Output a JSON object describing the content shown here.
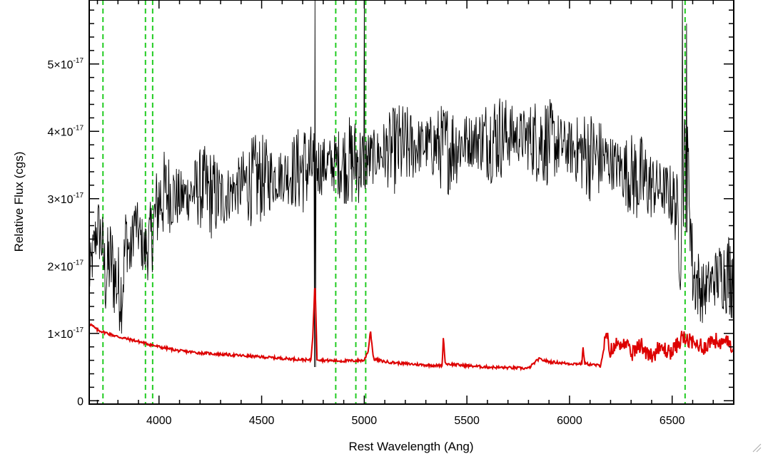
{
  "chart_data": {
    "type": "line",
    "title": "",
    "xlabel": "Rest Wavelength (Ang)",
    "ylabel": "Relative Flux (cgs)",
    "xlim": [
      3660,
      6800
    ],
    "ylim": [
      -0.05,
      5.95
    ],
    "y_multiplier": "x10^-17",
    "grid": false,
    "xticks": [
      {
        "value": 4000,
        "label": "4000"
      },
      {
        "value": 4500,
        "label": "4500"
      },
      {
        "value": 5000,
        "label": "5000"
      },
      {
        "value": 5500,
        "label": "5500"
      },
      {
        "value": 6000,
        "label": "6000"
      },
      {
        "value": 6500,
        "label": "6500"
      }
    ],
    "yticks": [
      {
        "value": 0,
        "mantissa": "0",
        "times": "",
        "exponent": ""
      },
      {
        "value": 1,
        "mantissa": "1",
        "times": "×10",
        "exponent": "-17"
      },
      {
        "value": 2,
        "mantissa": "2",
        "times": "×10",
        "exponent": "-17"
      },
      {
        "value": 3,
        "mantissa": "3",
        "times": "×10",
        "exponent": "-17"
      },
      {
        "value": 4,
        "mantissa": "4",
        "times": "×10",
        "exponent": "-17"
      },
      {
        "value": 5,
        "mantissa": "5",
        "times": "×10",
        "exponent": "-17"
      }
    ],
    "reference_lines": [
      3727,
      3934,
      3969,
      4861,
      4959,
      5007,
      6563
    ],
    "series": [
      {
        "color": "#000000",
        "points": [
          [
            3660,
            1.8
          ],
          [
            3680,
            2.2
          ],
          [
            3700,
            2.6
          ],
          [
            3720,
            2.4
          ],
          [
            3740,
            1.8
          ],
          [
            3760,
            2.1
          ],
          [
            3800,
            1.7
          ],
          [
            3820,
            1.6
          ],
          [
            3840,
            2.5
          ],
          [
            3860,
            2.1
          ],
          [
            3880,
            2.7
          ],
          [
            3900,
            2.5
          ],
          [
            3930,
            2.2
          ],
          [
            3960,
            2.4
          ],
          [
            3980,
            2.7
          ],
          [
            4000,
            3.0
          ],
          [
            4050,
            3.1
          ],
          [
            4100,
            3.0
          ],
          [
            4200,
            3.15
          ],
          [
            4300,
            3.0
          ],
          [
            4400,
            3.2
          ],
          [
            4500,
            3.3
          ],
          [
            4600,
            3.35
          ],
          [
            4700,
            3.45
          ],
          [
            4800,
            3.5
          ],
          [
            4900,
            3.55
          ],
          [
            5000,
            3.55
          ],
          [
            5100,
            3.7
          ],
          [
            5200,
            3.75
          ],
          [
            5300,
            3.8
          ],
          [
            5400,
            3.75
          ],
          [
            5500,
            3.85
          ],
          [
            5600,
            3.9
          ],
          [
            5700,
            3.95
          ],
          [
            5800,
            3.9
          ],
          [
            5900,
            3.85
          ],
          [
            6000,
            3.75
          ],
          [
            6100,
            3.65
          ],
          [
            6200,
            3.55
          ],
          [
            6300,
            3.35
          ],
          [
            6400,
            3.2
          ],
          [
            6480,
            3.1
          ],
          [
            6520,
            2.9
          ],
          [
            6540,
            2.2
          ],
          [
            6560,
            3.6
          ],
          [
            6580,
            3.4
          ],
          [
            6600,
            1.9
          ],
          [
            6650,
            1.6
          ],
          [
            6700,
            1.8
          ],
          [
            6750,
            1.9
          ],
          [
            6800,
            1.9
          ]
        ],
        "spikes": [
          [
            4760,
            6.0,
            0.5
          ],
          [
            6550,
            6.0,
            3.5
          ],
          [
            6570,
            5.6,
            2.5
          ],
          [
            5000,
            5.9,
            3.2
          ]
        ]
      },
      {
        "color": "#dd0000",
        "points": [
          [
            3660,
            1.15
          ],
          [
            3700,
            1.05
          ],
          [
            3750,
            1.0
          ],
          [
            3800,
            0.95
          ],
          [
            3900,
            0.88
          ],
          [
            4000,
            0.8
          ],
          [
            4100,
            0.74
          ],
          [
            4200,
            0.71
          ],
          [
            4300,
            0.69
          ],
          [
            4400,
            0.67
          ],
          [
            4500,
            0.65
          ],
          [
            4600,
            0.63
          ],
          [
            4700,
            0.61
          ],
          [
            4740,
            0.6
          ],
          [
            4750,
            1.0
          ],
          [
            4760,
            1.8
          ],
          [
            4770,
            0.62
          ],
          [
            4800,
            0.6
          ],
          [
            4900,
            0.59
          ],
          [
            5000,
            0.6
          ],
          [
            5020,
            0.75
          ],
          [
            5030,
            1.05
          ],
          [
            5045,
            0.62
          ],
          [
            5100,
            0.58
          ],
          [
            5200,
            0.55
          ],
          [
            5300,
            0.53
          ],
          [
            5380,
            0.52
          ],
          [
            5385,
            0.95
          ],
          [
            5395,
            0.55
          ],
          [
            5500,
            0.52
          ],
          [
            5600,
            0.5
          ],
          [
            5700,
            0.49
          ],
          [
            5800,
            0.48
          ],
          [
            5850,
            0.62
          ],
          [
            5900,
            0.58
          ],
          [
            6000,
            0.55
          ],
          [
            6060,
            0.55
          ],
          [
            6065,
            0.8
          ],
          [
            6075,
            0.55
          ],
          [
            6150,
            0.52
          ],
          [
            6180,
            0.95
          ],
          [
            6200,
            0.72
          ],
          [
            6250,
            0.9
          ],
          [
            6300,
            0.7
          ],
          [
            6350,
            0.82
          ],
          [
            6400,
            0.68
          ],
          [
            6450,
            0.78
          ],
          [
            6500,
            0.72
          ],
          [
            6550,
            0.95
          ],
          [
            6600,
            0.85
          ],
          [
            6650,
            0.8
          ],
          [
            6700,
            0.9
          ],
          [
            6750,
            0.85
          ],
          [
            6800,
            0.85
          ]
        ],
        "spikes": []
      }
    ]
  }
}
